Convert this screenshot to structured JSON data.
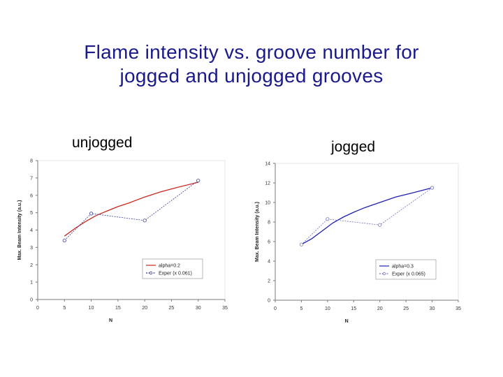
{
  "title": {
    "line1": "Flame intensity vs. groove number for",
    "line2": "jogged and unjogged grooves"
  },
  "chart_data": [
    {
      "type": "line",
      "panel_label": "unjogged",
      "xlabel": "N",
      "ylabel": "Max. Beam Intensity (a.u.)",
      "xlim": [
        0,
        35
      ],
      "ylim": [
        0,
        8
      ],
      "xticks": [
        "0",
        "5",
        "10",
        "15",
        "20",
        "25",
        "30",
        "35"
      ],
      "yticks": [
        "0",
        "1",
        "2",
        "3",
        "4",
        "5",
        "6",
        "7",
        "8"
      ],
      "grid": false,
      "legend_position": "bottom-right",
      "series": [
        {
          "name": "alpha=0.2",
          "color": "#c8281e",
          "marker": "none",
          "x": [
            5,
            7,
            9,
            11,
            13,
            15,
            17,
            20,
            23,
            26,
            30
          ],
          "y": [
            3.65,
            4.1,
            4.5,
            4.85,
            5.1,
            5.35,
            5.55,
            5.9,
            6.2,
            6.45,
            6.75
          ]
        },
        {
          "name": "Exper (x 0.061)",
          "color": "#3a3a9c",
          "marker": "circle",
          "x": [
            5,
            10,
            20,
            30
          ],
          "y": [
            3.4,
            4.95,
            4.55,
            6.85
          ]
        }
      ]
    },
    {
      "type": "line",
      "panel_label": "jogged",
      "xlabel": "N",
      "ylabel": "Max. Beam Intensity (a.u.)",
      "xlim": [
        0,
        35
      ],
      "ylim": [
        0,
        14
      ],
      "xticks": [
        "0",
        "5",
        "10",
        "15",
        "20",
        "25",
        "30",
        "35"
      ],
      "yticks": [
        "0",
        "2",
        "4",
        "6",
        "8",
        "10",
        "12",
        "14"
      ],
      "grid": false,
      "legend_position": "bottom-right",
      "series": [
        {
          "name": "alpha=0.3",
          "color": "#2020b0",
          "marker": "none",
          "x": [
            5,
            7,
            9,
            11,
            13,
            15,
            17,
            20,
            23,
            26,
            30
          ],
          "y": [
            5.7,
            6.3,
            7.1,
            7.9,
            8.5,
            9.0,
            9.45,
            10.0,
            10.55,
            10.95,
            11.5
          ]
        },
        {
          "name": "Exper (x 0.065)",
          "color": "#7070c0",
          "marker": "circle",
          "x": [
            5,
            10,
            20,
            30
          ],
          "y": [
            5.7,
            8.3,
            7.7,
            11.5
          ]
        }
      ]
    }
  ]
}
